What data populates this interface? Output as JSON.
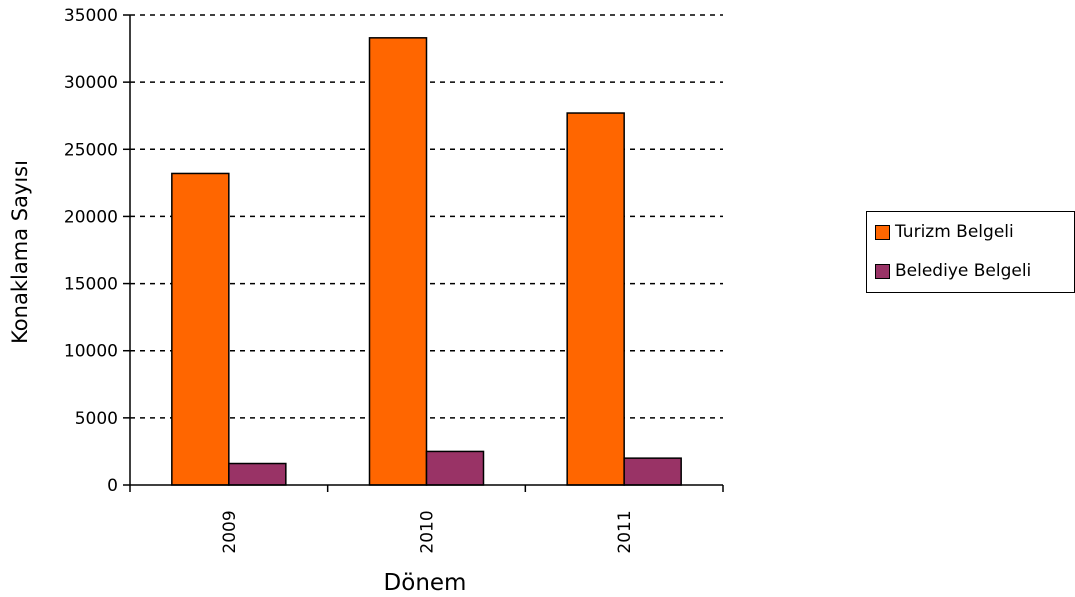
{
  "chart_data": {
    "type": "bar",
    "categories": [
      "2009",
      "2010",
      "2011"
    ],
    "series": [
      {
        "name": "Turizm Belgeli",
        "values": [
          23200,
          33300,
          27700
        ],
        "color": "#FF6600"
      },
      {
        "name": "Belediye Belgeli",
        "values": [
          1600,
          2500,
          2000
        ],
        "color": "#993366"
      }
    ],
    "xlabel": "Dönem",
    "ylabel": "Konaklama Sayısı",
    "ylim": [
      0,
      35000
    ],
    "yticks": [
      "0",
      "5000",
      "10000",
      "15000",
      "20000",
      "25000",
      "30000",
      "35000"
    ],
    "grid": "dashed-horizontal",
    "legend_position": "right"
  }
}
